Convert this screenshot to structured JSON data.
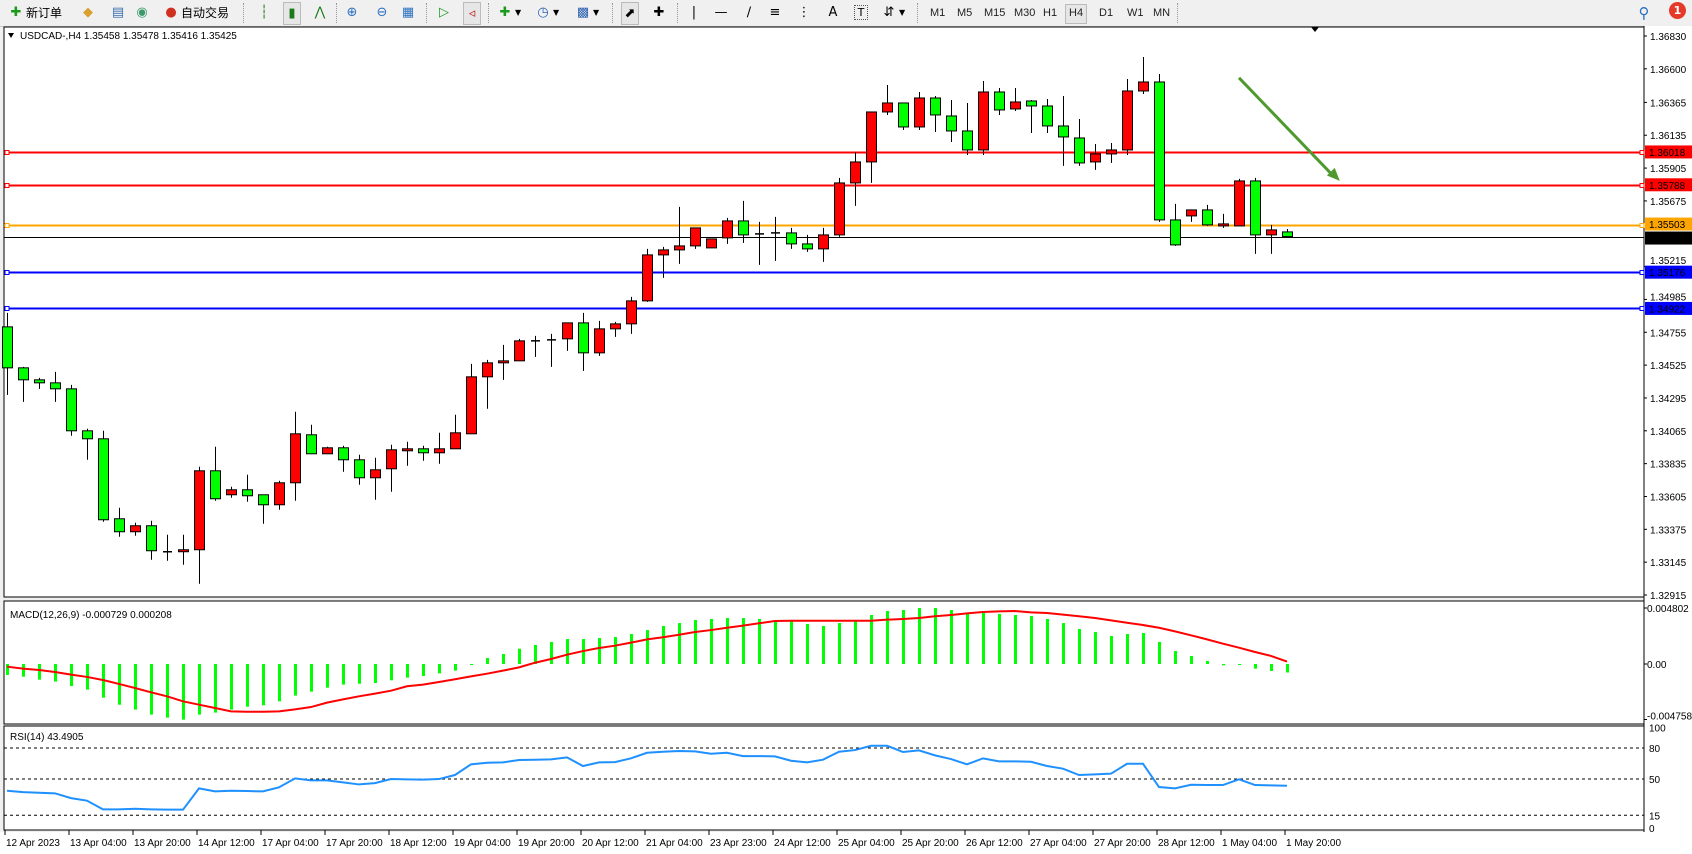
{
  "toolbar": {
    "new_order_label": "新订单",
    "auto_trade_label": "自动交易",
    "timeframes": [
      "M1",
      "M5",
      "M15",
      "M30",
      "H1",
      "H4",
      "D1",
      "W1",
      "MN"
    ],
    "active_timeframe": "H4",
    "notification_count": "1",
    "icons": [
      "new-order-icon",
      "market-watch-icon",
      "navigator-icon",
      "signals-icon",
      "auto-trading-icon",
      "bar-chart-icon",
      "candlestick-icon",
      "line-chart-icon",
      "zoom-in-icon",
      "zoom-out-icon",
      "tile-windows-icon",
      "autoscroll-icon",
      "chart-shift-icon",
      "indicators-icon",
      "periods-icon",
      "templates-icon",
      "cursor-icon",
      "crosshair-icon",
      "vertical-line-icon",
      "horizontal-line-icon",
      "trendline-icon",
      "fibonacci-icon",
      "fibo-fan-icon",
      "text-icon",
      "text-label-icon",
      "arrows-icon",
      "search-icon",
      "notification-icon"
    ]
  },
  "chart": {
    "header": "USDCAD-,H4  1.35458 1.35478 1.35416 1.35425",
    "colors": {
      "up": "#ff0000",
      "down": "#00ff00",
      "doji": "#000000",
      "grid": "#000000",
      "arrow": "#4f9a2f"
    }
  },
  "chart_data": [
    {
      "type": "candlestick",
      "symbol": "USDCAD-",
      "timeframe": "H4",
      "ylim": [
        1.32915,
        1.3683
      ],
      "y_ticks": [
        "1.36830",
        "1.36600",
        "1.36365",
        "1.36135",
        "1.35905",
        "1.35675",
        "1.35215",
        "1.34985",
        "1.34755",
        "1.34525",
        "1.34295",
        "1.34065",
        "1.33835",
        "1.33605",
        "1.33375",
        "1.33145",
        "1.32915"
      ],
      "x_tick_labels": [
        "12 Apr 2023",
        "13 Apr 04:00",
        "13 Apr 20:00",
        "14 Apr 12:00",
        "17 Apr 04:00",
        "17 Apr 20:00",
        "18 Apr 12:00",
        "19 Apr 04:00",
        "19 Apr 20:00",
        "20 Apr 12:00",
        "21 Apr 04:00",
        "23 Apr 23:00",
        "24 Apr 12:00",
        "25 Apr 04:00",
        "25 Apr 20:00",
        "26 Apr 12:00",
        "27 Apr 04:00",
        "27 Apr 20:00",
        "28 Apr 12:00",
        "1 May 04:00",
        "1 May 20:00"
      ],
      "x_tick_every": 4,
      "ohlc_fields": [
        "open",
        "high",
        "low",
        "close"
      ],
      "ohlc": [
        [
          1.34793,
          1.34891,
          1.34317,
          1.34506
        ],
        [
          1.34506,
          1.34513,
          1.34268,
          1.34422
        ],
        [
          1.34422,
          1.34436,
          1.34359,
          1.34401
        ],
        [
          1.34401,
          1.34478,
          1.34268,
          1.34359
        ],
        [
          1.34359,
          1.34387,
          1.3403,
          1.34065
        ],
        [
          1.34065,
          1.34079,
          1.33862,
          1.34009
        ],
        [
          1.34009,
          1.34065,
          1.33428,
          1.33442
        ],
        [
          1.33449,
          1.33526,
          1.33323,
          1.33358
        ],
        [
          1.33358,
          1.33421,
          1.3333,
          1.334
        ],
        [
          1.334,
          1.33435,
          1.33162,
          1.33225
        ],
        [
          1.33218,
          1.33337,
          1.33155,
          1.33218
        ],
        [
          1.33218,
          1.33337,
          1.33127,
          1.33232
        ],
        [
          1.33232,
          1.33813,
          1.32994,
          1.33785
        ],
        [
          1.33785,
          1.33953,
          1.33575,
          1.33589
        ],
        [
          1.33617,
          1.33673,
          1.33596,
          1.33652
        ],
        [
          1.33652,
          1.33757,
          1.33568,
          1.3361
        ],
        [
          1.33617,
          1.33617,
          1.33414,
          1.33547
        ],
        [
          1.33547,
          1.33715,
          1.33512,
          1.33701
        ],
        [
          1.33701,
          1.34198,
          1.33575,
          1.34044
        ],
        [
          1.34037,
          1.34107,
          1.33904,
          1.33904
        ],
        [
          1.33904,
          1.33953,
          1.33904,
          1.33946
        ],
        [
          1.33946,
          1.3396,
          1.33778,
          1.33862
        ],
        [
          1.33862,
          1.33897,
          1.33687,
          1.33736
        ],
        [
          1.33736,
          1.33876,
          1.33582,
          1.33792
        ],
        [
          1.33799,
          1.33967,
          1.33638,
          1.33932
        ],
        [
          1.33925,
          1.33988,
          1.3382,
          1.33939
        ],
        [
          1.33939,
          1.3396,
          1.33855,
          1.33911
        ],
        [
          1.33911,
          1.34051,
          1.33834,
          1.33939
        ],
        [
          1.33939,
          1.34177,
          1.33939,
          1.34051
        ],
        [
          1.34044,
          1.34534,
          1.34044,
          1.34443
        ],
        [
          1.34443,
          1.34562,
          1.34219,
          1.34541
        ],
        [
          1.34541,
          1.34667,
          1.34422,
          1.34555
        ],
        [
          1.34555,
          1.34709,
          1.34555,
          1.34695
        ],
        [
          1.34695,
          1.3473,
          1.34583,
          1.34695
        ],
        [
          1.34702,
          1.34744,
          1.34513,
          1.34702
        ],
        [
          1.34709,
          1.34821,
          1.34625,
          1.34821
        ],
        [
          1.34821,
          1.34891,
          1.34485,
          1.34611
        ],
        [
          1.34611,
          1.34835,
          1.3459,
          1.34779
        ],
        [
          1.34779,
          1.34828,
          1.34723,
          1.34814
        ],
        [
          1.34814,
          1.35003,
          1.34744,
          1.34975
        ],
        [
          1.34975,
          1.35339,
          1.34968,
          1.35297
        ],
        [
          1.35297,
          1.35353,
          1.35136,
          1.35332
        ],
        [
          1.35332,
          1.35633,
          1.35234,
          1.3536
        ],
        [
          1.3536,
          1.35486,
          1.35339,
          1.35486
        ],
        [
          1.35346,
          1.35409,
          1.35346,
          1.35409
        ],
        [
          1.35416,
          1.35556,
          1.35374,
          1.35535
        ],
        [
          1.35535,
          1.35675,
          1.35381,
          1.35437
        ],
        [
          1.35444,
          1.35528,
          1.35227,
          1.35444
        ],
        [
          1.35451,
          1.35563,
          1.35255,
          1.35451
        ],
        [
          1.35451,
          1.35486,
          1.35339,
          1.35374
        ],
        [
          1.35374,
          1.35437,
          1.35318,
          1.35339
        ],
        [
          1.35339,
          1.35486,
          1.35248,
          1.35437
        ],
        [
          1.35437,
          1.35836,
          1.35423,
          1.35801
        ],
        [
          1.35801,
          1.36018,
          1.3564,
          1.35948
        ],
        [
          1.35948,
          1.36298,
          1.35801,
          1.36298
        ],
        [
          1.36298,
          1.36487,
          1.36277,
          1.36361
        ],
        [
          1.36361,
          1.36361,
          1.36172,
          1.36193
        ],
        [
          1.36193,
          1.36438,
          1.36172,
          1.36396
        ],
        [
          1.36396,
          1.3641,
          1.36158,
          1.36277
        ],
        [
          1.3627,
          1.36382,
          1.36088,
          1.36165
        ],
        [
          1.36165,
          1.36361,
          1.35997,
          1.36032
        ],
        [
          1.36032,
          1.36515,
          1.35997,
          1.36438
        ],
        [
          1.36438,
          1.36466,
          1.36277,
          1.36312
        ],
        [
          1.36319,
          1.36466,
          1.36305,
          1.36368
        ],
        [
          1.36375,
          1.36382,
          1.36151,
          1.3634
        ],
        [
          1.3634,
          1.36389,
          1.36151,
          1.362
        ],
        [
          1.362,
          1.3641,
          1.3592,
          1.36123
        ],
        [
          1.36116,
          1.36249,
          1.3592,
          1.35941
        ],
        [
          1.35948,
          1.36074,
          1.35892,
          1.36004
        ],
        [
          1.36004,
          1.36081,
          1.35941,
          1.36032
        ],
        [
          1.36032,
          1.36529,
          1.35997,
          1.36445
        ],
        [
          1.36445,
          1.36683,
          1.36424,
          1.36508
        ],
        [
          1.36508,
          1.36564,
          1.35528,
          1.35542
        ],
        [
          1.35542,
          1.35654,
          1.3536,
          1.35367
        ],
        [
          1.3557,
          1.35612,
          1.35528,
          1.35612
        ],
        [
          1.35612,
          1.35647,
          1.355,
          1.35507
        ],
        [
          1.355,
          1.35584,
          1.35486,
          1.35514
        ],
        [
          1.355,
          1.35829,
          1.355,
          1.35815
        ],
        [
          1.35815,
          1.35836,
          1.35304,
          1.35437
        ],
        [
          1.35437,
          1.35507,
          1.35304,
          1.35472
        ],
        [
          1.35458,
          1.35478,
          1.35416,
          1.35425
        ]
      ],
      "levels": [
        {
          "price": 1.36018,
          "label": "1.36018",
          "color": "#ff0000",
          "text_color": "#ffffff"
        },
        {
          "price": 1.35788,
          "label": "1.35788",
          "color": "#ff0000",
          "text_color": "#ffffff"
        },
        {
          "price": 1.35503,
          "label": "1.35503",
          "color": "#ffa500",
          "text_color": "#ffffff"
        },
        {
          "price": 1.35425,
          "label": "1.35425",
          "color": "#000000",
          "text_color": "#ffffff",
          "bid_line": true
        },
        {
          "price": 1.35176,
          "label": "1.35176",
          "color": "#0000ff",
          "text_color": "#ffffff"
        },
        {
          "price": 1.34922,
          "label": "1.34922",
          "color": "#0000ff",
          "text_color": "#ffffff"
        }
      ],
      "annotation_arrow": {
        "from": {
          "bar": 77,
          "price": 1.36537
        },
        "to": {
          "bar": 83.3,
          "price": 1.35815
        },
        "color": "#4f9a2f"
      }
    },
    {
      "type": "bar+line",
      "title": "MACD(12,26,9) -0.000729 0.000208",
      "ylim": [
        -0.004758,
        0.004802
      ],
      "y_ticks": [
        "0.004802",
        "0.00",
        "-0.004758"
      ],
      "histogram_color": "#00ff00",
      "signal_color": "#ff0000",
      "main": [
        -0.00094,
        -0.00109,
        -0.00134,
        -0.00151,
        -0.00189,
        -0.0022,
        -0.00289,
        -0.00349,
        -0.00391,
        -0.00434,
        -0.0046,
        -0.00477,
        -0.00434,
        -0.00417,
        -0.00391,
        -0.00366,
        -0.00354,
        -0.0032,
        -0.00271,
        -0.00237,
        -0.00203,
        -0.00177,
        -0.00169,
        -0.00163,
        -0.0014,
        -0.00117,
        -0.00103,
        -0.0008,
        -0.00057,
        -3e-05,
        0.00051,
        0.00086,
        0.00131,
        0.00163,
        0.00189,
        0.00214,
        0.00214,
        0.00223,
        0.00231,
        0.00257,
        0.00291,
        0.00326,
        0.00351,
        0.00377,
        0.00386,
        0.00394,
        0.00394,
        0.00386,
        0.00377,
        0.00369,
        0.00343,
        0.00326,
        0.00351,
        0.00369,
        0.0042,
        0.00454,
        0.00463,
        0.0048,
        0.0048,
        0.00463,
        0.00429,
        0.00437,
        0.00429,
        0.0042,
        0.00411,
        0.00386,
        0.00351,
        0.003,
        0.00274,
        0.0024,
        0.00257,
        0.00266,
        0.00189,
        0.00111,
        0.00069,
        0.00026,
        -0.00011,
        -3e-05,
        -0.0004,
        -0.0006,
        -0.000729
      ],
      "signal": [
        -0.00023,
        -0.0004,
        -0.00051,
        -0.00069,
        -0.00091,
        -0.00111,
        -0.00137,
        -0.00171,
        -0.00206,
        -0.00243,
        -0.00277,
        -0.0032,
        -0.00349,
        -0.00377,
        -0.00406,
        -0.00409,
        -0.00409,
        -0.00406,
        -0.00389,
        -0.00369,
        -0.00331,
        -0.00303,
        -0.00277,
        -0.00254,
        -0.00229,
        -0.00191,
        -0.00177,
        -0.00154,
        -0.00131,
        -0.00106,
        -0.00083,
        -0.00057,
        -0.00029,
        0.00011,
        0.00043,
        0.0008,
        0.00111,
        0.00137,
        0.00157,
        0.00183,
        0.00211,
        0.00229,
        0.00251,
        0.00274,
        0.00291,
        0.00311,
        0.00329,
        0.00349,
        0.00369,
        0.00371,
        0.00371,
        0.00371,
        0.00371,
        0.00371,
        0.00371,
        0.0038,
        0.00386,
        0.00394,
        0.00409,
        0.0042,
        0.00434,
        0.00446,
        0.00451,
        0.00454,
        0.00443,
        0.00437,
        0.00423,
        0.00409,
        0.00394,
        0.00374,
        0.00354,
        0.00334,
        0.00311,
        0.0028,
        0.00246,
        0.00211,
        0.00174,
        0.0014,
        0.00103,
        0.00069,
        0.000208
      ]
    },
    {
      "type": "line",
      "title": "RSI(14) 43.4905",
      "ylim": [
        0,
        100
      ],
      "y_ticks": [
        "100",
        "80",
        "50",
        "15",
        "0"
      ],
      "levels": [
        80,
        50,
        15
      ],
      "color": "#1e90ff",
      "values": [
        38.7,
        37.4,
        36.8,
        36.2,
        31.6,
        29.1,
        20.7,
        20.7,
        21.3,
        20.7,
        20.4,
        20.4,
        41,
        38.1,
        38.7,
        38.4,
        38.1,
        42,
        50.6,
        48.7,
        48.7,
        46.8,
        44.8,
        46.1,
        50,
        49.7,
        49.4,
        50,
        53.9,
        64.2,
        65.8,
        66.1,
        68.4,
        68.7,
        69,
        70.9,
        62.6,
        66.1,
        66.4,
        70,
        75.4,
        76.4,
        77.1,
        76.7,
        74.5,
        75.4,
        72.2,
        72.2,
        71.9,
        67.7,
        66.1,
        68.7,
        76.4,
        78,
        82.2,
        82.2,
        76.1,
        77.7,
        72.9,
        69.3,
        64.2,
        70,
        67.1,
        67.1,
        66.7,
        62.6,
        60,
        53.9,
        54.5,
        55.2,
        64.8,
        64.8,
        42.3,
        41,
        44.5,
        44.2,
        44.2,
        49.7,
        44.2,
        43.9,
        43.4905
      ]
    }
  ]
}
